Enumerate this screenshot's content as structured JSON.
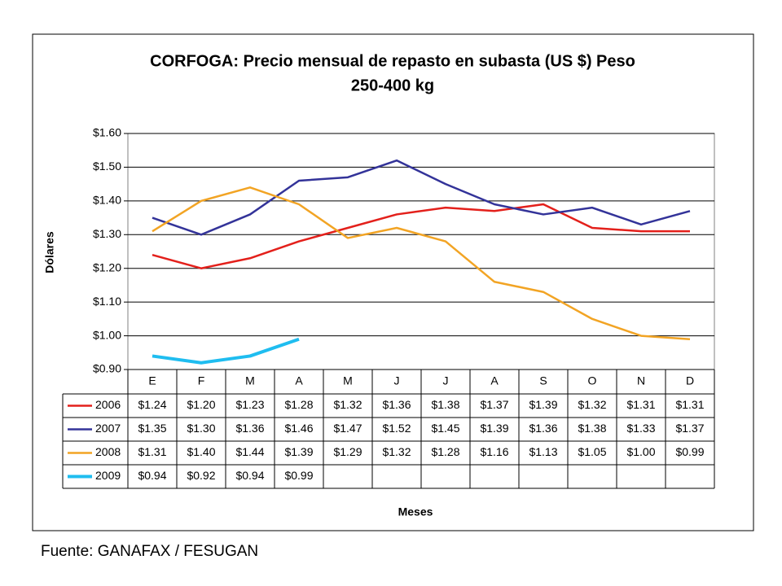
{
  "chart_data": {
    "type": "line",
    "title": [
      "CORFOGA: Precio mensual de repasto en subasta (US $) Peso",
      "250-400 kg"
    ],
    "ylabel": "Dólares",
    "xlabel": "Meses",
    "categories": [
      "E",
      "F",
      "M",
      "A",
      "M",
      "J",
      "J",
      "A",
      "S",
      "O",
      "N",
      "D"
    ],
    "ylim": [
      0.9,
      1.6
    ],
    "yticks": [
      {
        "value": 0.9,
        "label": "$0.90"
      },
      {
        "value": 1.0,
        "label": "$1.00"
      },
      {
        "value": 1.1,
        "label": "$1.10"
      },
      {
        "value": 1.2,
        "label": "$1.20"
      },
      {
        "value": 1.3,
        "label": "$1.30"
      },
      {
        "value": 1.4,
        "label": "$1.40"
      },
      {
        "value": 1.5,
        "label": "$1.50"
      },
      {
        "value": 1.6,
        "label": "$1.60"
      }
    ],
    "grid": true,
    "series": [
      {
        "name": "2006",
        "color": "#e3201b",
        "values": [
          1.24,
          1.2,
          1.23,
          1.28,
          1.32,
          1.36,
          1.38,
          1.37,
          1.39,
          1.32,
          1.31,
          1.31
        ],
        "value_labels": [
          "$1.24",
          "$1.20",
          "$1.23",
          "$1.28",
          "$1.32",
          "$1.36",
          "$1.38",
          "$1.37",
          "$1.39",
          "$1.32",
          "$1.31",
          "$1.31"
        ]
      },
      {
        "name": "2007",
        "color": "#333399",
        "values": [
          1.35,
          1.3,
          1.36,
          1.46,
          1.47,
          1.52,
          1.45,
          1.39,
          1.36,
          1.38,
          1.33,
          1.37
        ],
        "value_labels": [
          "$1.35",
          "$1.30",
          "$1.36",
          "$1.46",
          "$1.47",
          "$1.52",
          "$1.45",
          "$1.39",
          "$1.36",
          "$1.38",
          "$1.33",
          "$1.37"
        ]
      },
      {
        "name": "2008",
        "color": "#f2a424",
        "values": [
          1.31,
          1.4,
          1.44,
          1.39,
          1.29,
          1.32,
          1.28,
          1.16,
          1.13,
          1.05,
          1.0,
          0.99
        ],
        "value_labels": [
          "$1.31",
          "$1.40",
          "$1.44",
          "$1.39",
          "$1.29",
          "$1.32",
          "$1.28",
          "$1.16",
          "$1.13",
          "$1.05",
          "$1.00",
          "$0.99"
        ]
      },
      {
        "name": "2009",
        "color": "#1fbdf0",
        "values": [
          0.94,
          0.92,
          0.94,
          0.99,
          null,
          null,
          null,
          null,
          null,
          null,
          null,
          null
        ],
        "value_labels": [
          "$0.94",
          "$0.92",
          "$0.94",
          "$0.99",
          null,
          null,
          null,
          null,
          null,
          null,
          null,
          null
        ]
      }
    ]
  },
  "source": "Fuente: GANAFAX / FESUGAN"
}
